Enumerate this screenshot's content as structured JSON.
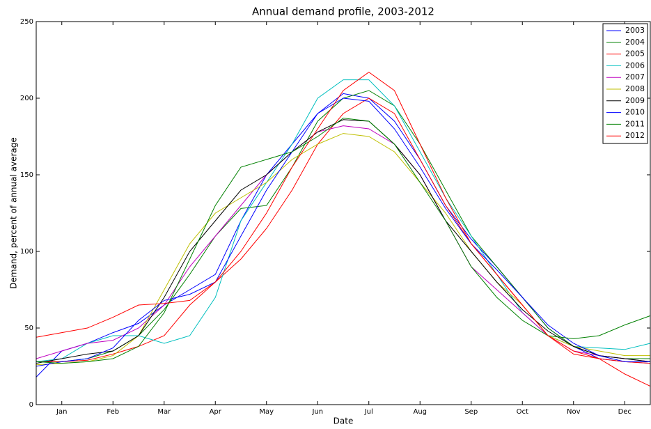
{
  "chart_data": {
    "type": "line",
    "title": "Annual demand profile, 2003-2012",
    "x_label": "Date",
    "y_label": "Demand, percent of annual average",
    "categories": [
      null,
      "Jan",
      null,
      "Feb",
      null,
      "Mar",
      null,
      "Apr",
      null,
      "May",
      null,
      "Jun",
      null,
      "Jul",
      null,
      "Aug",
      null,
      "Sep",
      null,
      "Oct",
      null,
      "Nov",
      null,
      "Dec",
      null
    ],
    "ylim": [
      0,
      250
    ],
    "yticks": [
      0,
      50,
      100,
      150,
      200,
      250
    ],
    "grid": false,
    "legend": "upper-right",
    "series": [
      {
        "name": "2003",
        "color": "#0000ff",
        "values": [
          18,
          35,
          40,
          47,
          53,
          65,
          75,
          85,
          120,
          150,
          170,
          190,
          203,
          200,
          185,
          160,
          130,
          108,
          90,
          70,
          50,
          38,
          30,
          28,
          27
        ]
      },
      {
        "name": "2004",
        "color": "#008000",
        "values": [
          28,
          28,
          30,
          35,
          45,
          62,
          85,
          110,
          128,
          130,
          155,
          185,
          200,
          205,
          195,
          170,
          140,
          110,
          90,
          70,
          50,
          38,
          32,
          30,
          30
        ]
      },
      {
        "name": "2005",
        "color": "#ff0000",
        "values": [
          28,
          28,
          29,
          33,
          38,
          45,
          65,
          80,
          95,
          115,
          140,
          170,
          190,
          200,
          190,
          160,
          130,
          105,
          85,
          65,
          45,
          33,
          30,
          28,
          27
        ]
      },
      {
        "name": "2006",
        "color": "#00bfbf",
        "values": [
          28,
          30,
          40,
          45,
          45,
          40,
          45,
          70,
          120,
          145,
          170,
          200,
          212,
          212,
          195,
          165,
          135,
          110,
          85,
          60,
          45,
          38,
          37,
          36,
          40
        ]
      },
      {
        "name": "2007",
        "color": "#bf00bf",
        "values": [
          30,
          35,
          40,
          42,
          50,
          65,
          90,
          110,
          130,
          150,
          165,
          178,
          182,
          180,
          170,
          150,
          120,
          90,
          75,
          60,
          45,
          35,
          32,
          30,
          28
        ]
      },
      {
        "name": "2008",
        "color": "#bfbf00",
        "values": [
          26,
          27,
          28,
          32,
          45,
          75,
          105,
          125,
          135,
          145,
          160,
          170,
          177,
          175,
          165,
          145,
          125,
          100,
          80,
          65,
          45,
          38,
          35,
          32,
          32
        ]
      },
      {
        "name": "2009",
        "color": "#000000",
        "values": [
          27,
          30,
          33,
          35,
          45,
          70,
          100,
          120,
          140,
          150,
          165,
          178,
          186,
          185,
          170,
          150,
          120,
          100,
          80,
          62,
          48,
          38,
          32,
          30,
          28
        ]
      },
      {
        "name": "2010",
        "color": "#0000ff",
        "values": [
          25,
          28,
          30,
          37,
          55,
          68,
          72,
          80,
          110,
          140,
          165,
          190,
          200,
          198,
          180,
          155,
          128,
          105,
          88,
          70,
          52,
          40,
          32,
          28,
          28
        ]
      },
      {
        "name": "2011",
        "color": "#008000",
        "values": [
          28,
          27,
          28,
          30,
          38,
          60,
          95,
          130,
          155,
          160,
          165,
          175,
          187,
          185,
          170,
          145,
          120,
          90,
          70,
          55,
          45,
          43,
          45,
          52,
          58
        ]
      },
      {
        "name": "2012",
        "color": "#ff0000",
        "values": [
          44,
          47,
          50,
          57,
          65,
          66,
          68,
          80,
          100,
          125,
          155,
          180,
          205,
          217,
          205,
          170,
          135,
          105,
          85,
          65,
          45,
          35,
          30,
          20,
          12
        ]
      }
    ]
  }
}
